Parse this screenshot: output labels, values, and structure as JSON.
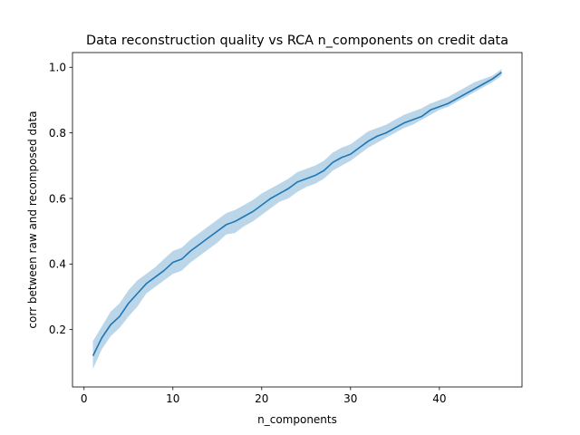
{
  "chart_data": {
    "type": "line",
    "title": "Data reconstruction quality vs RCA n_components on credit data",
    "xlabel": "n_components",
    "ylabel": "corr between raw and recomposed data",
    "xlim": [
      -1.3,
      49.3
    ],
    "ylim": [
      0.025,
      1.045
    ],
    "xticks": [
      0,
      10,
      20,
      30,
      40
    ],
    "yticks": [
      0.2,
      0.4,
      0.6,
      0.8,
      1.0
    ],
    "xtick_labels": [
      "0",
      "10",
      "20",
      "30",
      "40"
    ],
    "ytick_labels": [
      "0.2",
      "0.4",
      "0.6",
      "0.8",
      "1.0"
    ],
    "grid": false,
    "colors": {
      "line": "#1f77b4",
      "band": "#1f77b4"
    },
    "series": [
      {
        "x": [
          1,
          2,
          3,
          4,
          5,
          6,
          7,
          8,
          9,
          10,
          11,
          12,
          13,
          14,
          15,
          16,
          17,
          18,
          19,
          20,
          21,
          22,
          23,
          24,
          25,
          26,
          27,
          28,
          29,
          30,
          31,
          32,
          33,
          34,
          35,
          36,
          37,
          38,
          39,
          40,
          41,
          42,
          43,
          44,
          45,
          46,
          47
        ],
        "values": [
          0.12,
          0.175,
          0.215,
          0.24,
          0.28,
          0.31,
          0.34,
          0.36,
          0.38,
          0.405,
          0.415,
          0.44,
          0.46,
          0.48,
          0.5,
          0.52,
          0.53,
          0.545,
          0.56,
          0.58,
          0.6,
          0.615,
          0.63,
          0.65,
          0.66,
          0.67,
          0.685,
          0.71,
          0.725,
          0.735,
          0.755,
          0.775,
          0.79,
          0.8,
          0.815,
          0.83,
          0.84,
          0.85,
          0.87,
          0.88,
          0.89,
          0.905,
          0.92,
          0.935,
          0.95,
          0.965,
          0.985
        ],
        "lower": [
          0.08,
          0.14,
          0.18,
          0.205,
          0.24,
          0.27,
          0.31,
          0.33,
          0.35,
          0.37,
          0.38,
          0.405,
          0.425,
          0.445,
          0.465,
          0.49,
          0.495,
          0.515,
          0.53,
          0.55,
          0.57,
          0.59,
          0.6,
          0.62,
          0.635,
          0.645,
          0.66,
          0.685,
          0.7,
          0.715,
          0.735,
          0.755,
          0.77,
          0.785,
          0.8,
          0.815,
          0.825,
          0.84,
          0.855,
          0.87,
          0.88,
          0.895,
          0.91,
          0.925,
          0.94,
          0.955,
          0.975
        ],
        "upper": [
          0.165,
          0.21,
          0.255,
          0.28,
          0.32,
          0.35,
          0.37,
          0.39,
          0.415,
          0.44,
          0.45,
          0.475,
          0.495,
          0.515,
          0.535,
          0.555,
          0.565,
          0.58,
          0.595,
          0.615,
          0.63,
          0.645,
          0.66,
          0.68,
          0.69,
          0.7,
          0.715,
          0.74,
          0.755,
          0.765,
          0.785,
          0.805,
          0.815,
          0.825,
          0.84,
          0.855,
          0.865,
          0.875,
          0.89,
          0.9,
          0.91,
          0.925,
          0.94,
          0.955,
          0.965,
          0.975,
          0.995
        ]
      }
    ]
  }
}
